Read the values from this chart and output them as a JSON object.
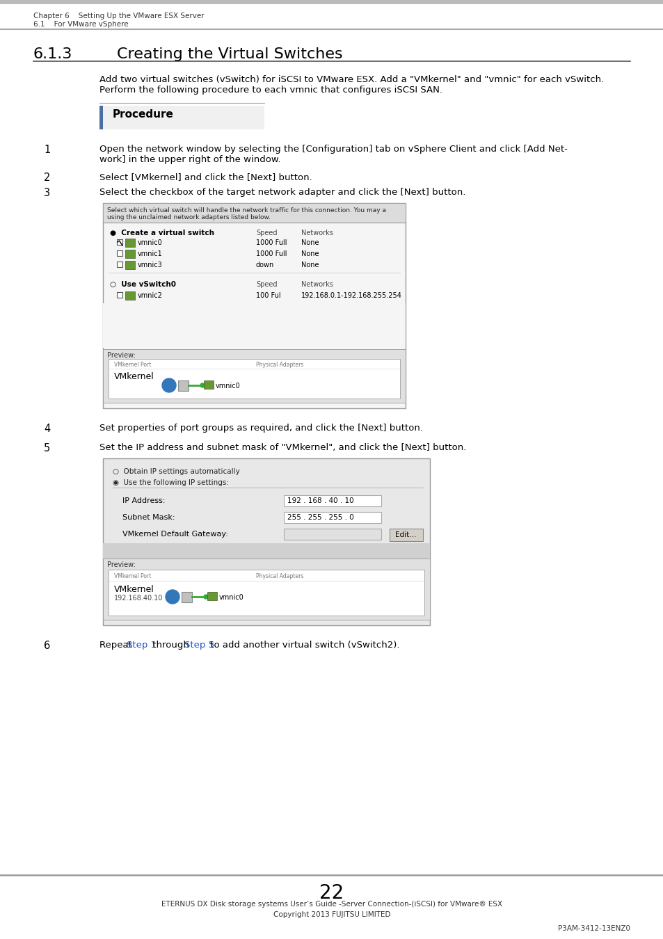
{
  "page_bg": "#ffffff",
  "header_line1": "Chapter 6    Setting Up the VMware ESX Server",
  "header_line2": "6.1    For VMware vSphere",
  "section_num": "6.1.3",
  "section_title": "Creating the Virtual Switches",
  "intro1": "Add two virtual switches (vSwitch) for iSCSI to VMware ESX. Add a \"VMkernel\" and \"vmnic\" for each vSwitch.",
  "intro2": "Perform the following procedure to each vmnic that configures iSCSI SAN.",
  "procedure_label": "Procedure",
  "step1_num": "1",
  "step1_line1": "Open the network window by selecting the [Configuration] tab on vSphere Client and click [Add Net-",
  "step1_line2": "work] in the upper right of the window.",
  "step2_num": "2",
  "step2_text": "Select [VMkernel] and click the [Next] button.",
  "step3_num": "3",
  "step3_text": "Select the checkbox of the target network adapter and click the [Next] button.",
  "step4_num": "4",
  "step4_text": "Set properties of port groups as required, and click the [Next] button.",
  "step5_num": "5",
  "step5_text": "Set the IP address and subnet mask of \"VMkernel\", and click the [Next] button.",
  "step6_num": "6",
  "step6_pre": "Repeat ",
  "step6_link1": "Step 1",
  "step6_mid": " through ",
  "step6_link2": "Step 5",
  "step6_post": " to add another virtual switch (vSwitch2).",
  "link_color": "#2255bb",
  "text_color": "#000000",
  "gray_text": "#555555",
  "light_gray": "#cccccc",
  "header_bg": "#dddddd",
  "ss_bg": "#e8e8e8",
  "ss_border": "#aaaaaa",
  "white": "#ffffff",
  "proc_blue": "#4a6fa5",
  "footer_line1": "ETERNUS DX Disk storage systems User’s Guide -Server Connection-(iSCSI) for VMware® ESX",
  "footer_line2": "Copyright 2013 FUJITSU LIMITED",
  "footer_code": "P3AM-3412-13ENZ0",
  "page_num": "22"
}
